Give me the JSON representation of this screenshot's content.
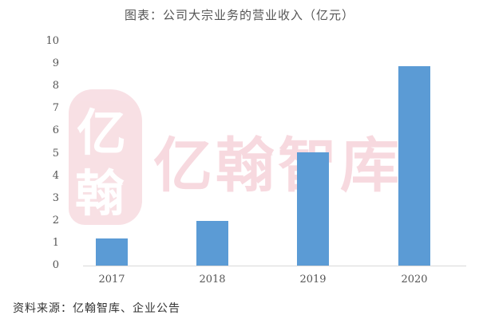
{
  "title": "图表：公司大宗业务的营业收入（亿元）",
  "watermark": {
    "seal_top": "亿",
    "seal_bottom": "翰",
    "text": "亿翰智库"
  },
  "source": "资料来源：亿翰智库、企业公告",
  "chart_data": {
    "type": "bar",
    "title": "图表：公司大宗业务的营业收入（亿元）",
    "xlabel": "",
    "ylabel": "",
    "categories": [
      "2017",
      "2018",
      "2019",
      "2020"
    ],
    "values": [
      1.2,
      2.0,
      5.05,
      8.9
    ],
    "ylim": [
      0,
      10
    ],
    "yticks": [
      "0",
      "1",
      "2",
      "3",
      "4",
      "5",
      "6",
      "7",
      "8",
      "9",
      "10"
    ],
    "grid": false,
    "legend": null,
    "bar_color": "#5b9bd5"
  }
}
